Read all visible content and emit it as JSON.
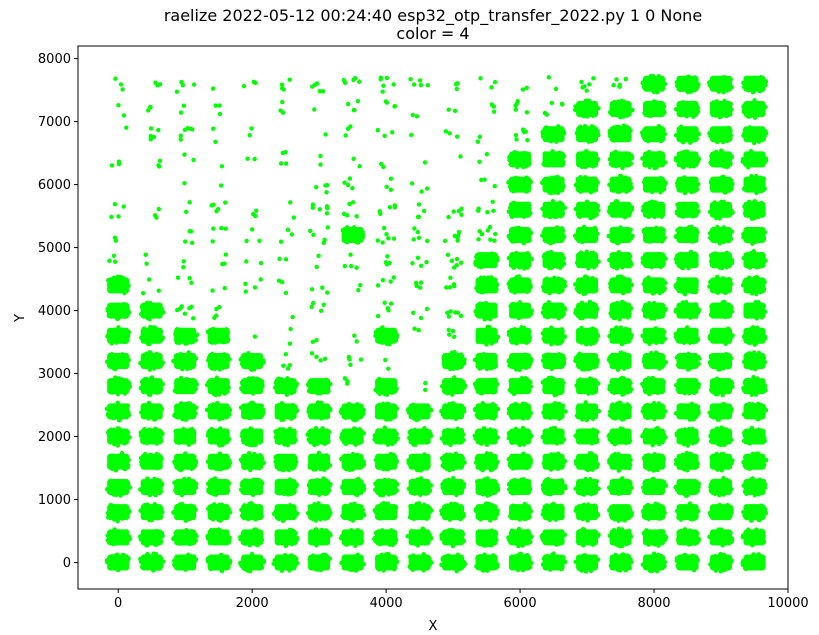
{
  "chart_data": {
    "type": "scatter",
    "title": "raelize 2022-05-12 00:24:40 esp32_otp_transfer_2022.py 1 0 None",
    "subtitle": "color = 4",
    "xlabel": "X",
    "ylabel": "Y",
    "xlim": [
      -600,
      10000
    ],
    "ylim": [
      -420,
      8200
    ],
    "xticks": [
      0,
      2000,
      4000,
      6000,
      8000,
      10000
    ],
    "yticks": [
      0,
      1000,
      2000,
      3000,
      4000,
      5000,
      6000,
      7000,
      8000
    ],
    "xtick_labels": [
      "0",
      "2000",
      "4000",
      "6000",
      "8000",
      "10000"
    ],
    "ytick_labels": [
      "0",
      "1000",
      "2000",
      "3000",
      "4000",
      "5000",
      "6000",
      "7000",
      "8000"
    ],
    "grid": false,
    "series": [
      {
        "color": "#00ff00",
        "grid_x": [
          0,
          500,
          1000,
          1500,
          2000,
          2500,
          3000,
          3500,
          4000,
          4500,
          5000,
          5500,
          6000,
          6500,
          7000,
          7500,
          8000,
          8500,
          9000,
          9500
        ],
        "grid_y": [
          0,
          400,
          800,
          1200,
          1600,
          2000,
          2400,
          2800,
          3200,
          3600,
          4000,
          4400,
          4800,
          5200,
          5600,
          6000,
          6400,
          6800,
          7200,
          7600
        ],
        "density_rows_note": "rows listed top (y=7600) to bottom (y=0); columns x=0..9500; D=dense cluster, numbers = sparse point count",
        "density": [
          [
            3,
            3,
            4,
            1,
            3,
            4,
            5,
            5,
            6,
            5,
            3,
            3,
            2,
            2,
            6,
            5,
            "D",
            "D",
            "D",
            "D"
          ],
          [
            2,
            3,
            2,
            3,
            0,
            3,
            1,
            4,
            4,
            2,
            2,
            3,
            5,
            5,
            "D",
            "D",
            "D",
            "D",
            "D",
            "D"
          ],
          [
            1,
            5,
            6,
            2,
            2,
            0,
            1,
            3,
            3,
            1,
            3,
            2,
            6,
            "D",
            "D",
            "D",
            "D",
            "D",
            "D",
            "D"
          ],
          [
            3,
            3,
            2,
            1,
            2,
            4,
            2,
            2,
            2,
            1,
            1,
            2,
            "D",
            "D",
            "D",
            "D",
            "D",
            "D",
            "D",
            "D"
          ],
          [
            0,
            0,
            1,
            1,
            0,
            0,
            4,
            4,
            3,
            3,
            0,
            3,
            "D",
            "D",
            "D",
            "D",
            "D",
            "D",
            "D",
            "D"
          ],
          [
            4,
            3,
            2,
            5,
            3,
            2,
            6,
            5,
            5,
            4,
            5,
            5,
            "D",
            "D",
            "D",
            "D",
            "D",
            "D",
            "D",
            "D"
          ],
          [
            2,
            0,
            4,
            4,
            3,
            3,
            5,
            "D",
            6,
            5,
            6,
            8,
            "D",
            "D",
            "D",
            "D",
            "D",
            "D",
            "D",
            "D"
          ],
          [
            3,
            2,
            2,
            3,
            2,
            2,
            2,
            4,
            4,
            4,
            6,
            "D",
            "D",
            "D",
            "D",
            "D",
            "D",
            "D",
            "D",
            "D"
          ],
          [
            "D",
            3,
            3,
            2,
            4,
            3,
            3,
            2,
            4,
            4,
            5,
            "D",
            "D",
            "D",
            "D",
            "D",
            "D",
            "D",
            "D",
            "D"
          ],
          [
            "D",
            "D",
            7,
            4,
            0,
            1,
            4,
            0,
            5,
            3,
            6,
            "D",
            "D",
            "D",
            "D",
            "D",
            "D",
            "D",
            "D",
            "D"
          ],
          [
            "D",
            "D",
            "D",
            "D",
            1,
            2,
            2,
            2,
            "D",
            2,
            4,
            "D",
            "D",
            "D",
            "D",
            "D",
            "D",
            "D",
            "D",
            "D"
          ],
          [
            "D",
            "D",
            "D",
            "D",
            "D",
            4,
            4,
            4,
            2,
            0,
            "D",
            "D",
            "D",
            "D",
            "D",
            "D",
            "D",
            "D",
            "D",
            "D"
          ],
          [
            "D",
            "D",
            "D",
            "D",
            "D",
            "D",
            "D",
            3,
            "D",
            2,
            "D",
            "D",
            "D",
            "D",
            "D",
            "D",
            "D",
            "D",
            "D",
            "D"
          ],
          [
            "D",
            "D",
            "D",
            "D",
            "D",
            "D",
            "D",
            "D",
            "D",
            "D",
            "D",
            "D",
            "D",
            "D",
            "D",
            "D",
            "D",
            "D",
            "D",
            "D"
          ],
          [
            "D",
            "D",
            "D",
            "D",
            "D",
            "D",
            "D",
            "D",
            "D",
            "D",
            "D",
            "D",
            "D",
            "D",
            "D",
            "D",
            "D",
            "D",
            "D",
            "D"
          ],
          [
            "D",
            "D",
            "D",
            "D",
            "D",
            "D",
            "D",
            "D",
            "D",
            "D",
            "D",
            "D",
            "D",
            "D",
            "D",
            "D",
            "D",
            "D",
            "D",
            "D"
          ],
          [
            "D",
            "D",
            "D",
            "D",
            "D",
            "D",
            "D",
            "D",
            "D",
            "D",
            "D",
            "D",
            "D",
            "D",
            "D",
            "D",
            "D",
            "D",
            "D",
            "D"
          ],
          [
            "D",
            "D",
            "D",
            "D",
            "D",
            "D",
            "D",
            "D",
            "D",
            "D",
            "D",
            "D",
            "D",
            "D",
            "D",
            "D",
            "D",
            "D",
            "D",
            "D"
          ],
          [
            "D",
            "D",
            "D",
            "D",
            "D",
            "D",
            "D",
            "D",
            "D",
            "D",
            "D",
            "D",
            "D",
            "D",
            "D",
            "D",
            "D",
            "D",
            "D",
            "D"
          ],
          [
            "D",
            "D",
            "D",
            "D",
            "D",
            "D",
            "D",
            "D",
            "D",
            "D",
            "D",
            "D",
            "D",
            "D",
            "D",
            "D",
            "D",
            "D",
            "D",
            "D"
          ]
        ]
      }
    ]
  }
}
